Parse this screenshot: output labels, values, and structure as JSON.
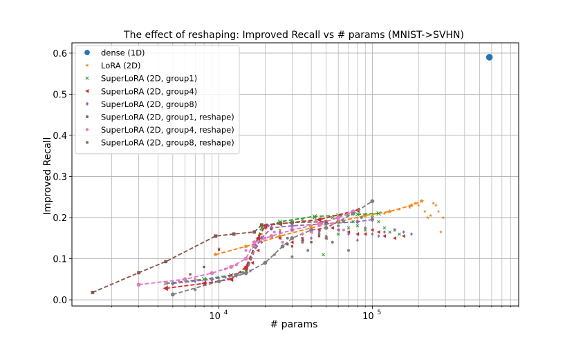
{
  "chart_data": {
    "type": "scatter",
    "title": "The effect of reshaping: Improved Recall vs # params (MNIST->SVHN)",
    "xlabel": "# params",
    "ylabel": "Improved Recall",
    "xscale": "log",
    "xlim": [
      1100,
      900000
    ],
    "ylim": [
      -0.015,
      0.625
    ],
    "x_major_ticks": [
      {
        "value": 10000,
        "base": "10",
        "exp": "4"
      },
      {
        "value": 100000,
        "base": "10",
        "exp": "5"
      }
    ],
    "y_ticks": [
      0.0,
      0.1,
      0.2,
      0.3,
      0.4,
      0.5,
      0.6
    ],
    "y_tick_labels": [
      "0.0",
      "0.1",
      "0.2",
      "0.3",
      "0.4",
      "0.5",
      "0.6"
    ],
    "grid": true,
    "legend_position": "top-left",
    "series": [
      {
        "name": "dense (1D)",
        "color": "#1f77b4",
        "marker": "o",
        "x": [
          580000
        ],
        "y": [
          0.59
        ],
        "front_x": [],
        "front_y": []
      },
      {
        "name": "LoRA (2D)",
        "color": "#ff7f0e",
        "marker": "star",
        "x": [
          9500,
          10000,
          19000,
          25000,
          40000,
          60000,
          80000,
          100000,
          120000,
          150000,
          175000,
          190000,
          200000,
          210000,
          220000,
          230000,
          240000,
          250000,
          260000,
          270000,
          280000,
          290000
        ],
        "y": [
          0.11,
          0.125,
          0.16,
          0.17,
          0.18,
          0.19,
          0.2,
          0.205,
          0.21,
          0.22,
          0.225,
          0.235,
          0.23,
          0.24,
          0.215,
          0.2,
          0.205,
          0.235,
          0.23,
          0.215,
          0.165,
          0.2
        ],
        "front_x": [
          9500,
          15000,
          25000,
          40000,
          60000,
          90000,
          130000,
          180000,
          210000
        ],
        "front_y": [
          0.11,
          0.13,
          0.155,
          0.175,
          0.19,
          0.205,
          0.215,
          0.23,
          0.24
        ]
      },
      {
        "name": "SuperLoRA (2D, group1)",
        "color": "#2ca02c",
        "marker": "x",
        "x": [
          4500,
          15000,
          17000,
          19000,
          25000,
          30000,
          35000,
          42000,
          48000,
          55000,
          60000,
          65000,
          70000,
          75000,
          80000,
          90000,
          100000,
          110000,
          120000,
          130000,
          140000,
          150000
        ],
        "y": [
          0.04,
          0.07,
          0.13,
          0.175,
          0.185,
          0.19,
          0.195,
          0.2,
          0.11,
          0.2,
          0.16,
          0.19,
          0.175,
          0.19,
          0.18,
          0.17,
          0.2,
          0.19,
          0.175,
          0.165,
          0.17,
          0.16
        ],
        "front_x": [
          4500,
          8000,
          12000,
          15000,
          17000,
          19000,
          25000,
          42000,
          60000,
          80000,
          110000
        ],
        "front_y": [
          0.04,
          0.05,
          0.06,
          0.07,
          0.13,
          0.175,
          0.19,
          0.203,
          0.205,
          0.208,
          0.21
        ]
      },
      {
        "name": "SuperLoRA (2D, group4)",
        "color": "#d62728",
        "marker": "tri-left",
        "x": [
          4500,
          8000,
          12000,
          15000,
          16500,
          18000,
          20000,
          25000,
          30000,
          35000,
          40000,
          45000,
          50000,
          55000,
          60000,
          70000,
          80000,
          90000,
          100000,
          110000,
          120000,
          140000,
          160000
        ],
        "y": [
          0.028,
          0.04,
          0.06,
          0.075,
          0.09,
          0.12,
          0.175,
          0.15,
          0.14,
          0.145,
          0.165,
          0.17,
          0.15,
          0.175,
          0.17,
          0.165,
          0.16,
          0.16,
          0.17,
          0.165,
          0.155,
          0.15,
          0.155
        ],
        "front_x": [
          4500,
          8000,
          12000,
          15000,
          18000,
          20000,
          25000,
          45000,
          80000
        ],
        "front_y": [
          0.028,
          0.04,
          0.05,
          0.08,
          0.15,
          0.18,
          0.185,
          0.195,
          0.218
        ]
      },
      {
        "name": "SuperLoRA (2D, group8)",
        "color": "#9467bd",
        "marker": "diamond",
        "x": [
          4500,
          7000,
          9000,
          11000,
          13000,
          14500,
          16000,
          17500,
          19000,
          21000,
          25000,
          30000,
          35000,
          40000,
          45000,
          50000,
          60000,
          70000,
          80000,
          90000,
          100000,
          110000,
          120000,
          140000,
          160000,
          180000
        ],
        "y": [
          0.04,
          0.045,
          0.05,
          0.055,
          0.06,
          0.065,
          0.07,
          0.13,
          0.14,
          0.18,
          0.165,
          0.17,
          0.16,
          0.15,
          0.165,
          0.155,
          0.17,
          0.16,
          0.145,
          0.175,
          0.16,
          0.155,
          0.165,
          0.17,
          0.165,
          0.16
        ],
        "front_x": [
          5000,
          9000,
          13000,
          15000,
          17500,
          19000,
          22000,
          30000,
          50000,
          80000,
          100000
        ],
        "front_y": [
          0.04,
          0.05,
          0.06,
          0.065,
          0.13,
          0.15,
          0.175,
          0.18,
          0.185,
          0.19,
          0.195
        ]
      },
      {
        "name": "SuperLoRA (2D, group1, reshape)",
        "color": "#8c564b",
        "marker": "square",
        "x": [
          1500,
          3000,
          4500,
          6500,
          8000,
          9500,
          10000,
          12500,
          17000,
          19000,
          22000,
          25000,
          28000,
          30000,
          35000,
          40000,
          45000,
          50000
        ],
        "y": [
          0.018,
          0.066,
          0.093,
          0.062,
          0.08,
          0.155,
          0.122,
          0.16,
          0.165,
          0.182,
          0.172,
          0.15,
          0.135,
          0.13,
          0.15,
          0.14,
          0.155,
          0.15
        ],
        "front_x": [
          1500,
          3000,
          4500,
          9500,
          12500,
          17000,
          19000,
          30000,
          50000
        ],
        "front_y": [
          0.018,
          0.066,
          0.093,
          0.155,
          0.16,
          0.165,
          0.182,
          0.188,
          0.19
        ]
      },
      {
        "name": "SuperLoRA (2D, group4, reshape)",
        "color": "#e377c2",
        "marker": "circle-small",
        "x": [
          3000,
          4500,
          5500,
          7000,
          9000,
          11000,
          13000,
          15000,
          17000,
          20000,
          23000,
          26000,
          30000,
          35000,
          40000,
          45000,
          50000,
          55000,
          60000,
          65000,
          70000,
          75000
        ],
        "y": [
          0.037,
          0.04,
          0.045,
          0.05,
          0.065,
          0.075,
          0.085,
          0.12,
          0.13,
          0.15,
          0.165,
          0.14,
          0.175,
          0.16,
          0.165,
          0.18,
          0.15,
          0.185,
          0.195,
          0.17,
          0.21,
          0.215
        ],
        "front_x": [
          3000,
          6000,
          9000,
          12000,
          15000,
          17000,
          22000,
          30000,
          45000,
          60000,
          75000
        ],
        "front_y": [
          0.037,
          0.05,
          0.065,
          0.08,
          0.1,
          0.14,
          0.155,
          0.17,
          0.185,
          0.2,
          0.215
        ]
      },
      {
        "name": "SuperLoRA (2D, group8, reshape)",
        "color": "#7f7f7f",
        "marker": "circle-small",
        "x": [
          5000,
          7000,
          10000,
          13000,
          15000,
          20000,
          23000,
          26000,
          28000,
          30000,
          35000,
          38000,
          40000,
          45000,
          50000,
          55000,
          60000,
          65000,
          70000,
          75000,
          85000,
          100000
        ],
        "y": [
          0.013,
          0.025,
          0.045,
          0.06,
          0.065,
          0.09,
          0.11,
          0.13,
          0.15,
          0.105,
          0.14,
          0.12,
          0.17,
          0.16,
          0.15,
          0.14,
          0.18,
          0.19,
          0.12,
          0.21,
          0.2,
          0.24
        ],
        "front_x": [
          5000,
          10000,
          15000,
          20000,
          26000,
          30000,
          40000,
          50000,
          60000,
          75000,
          100000
        ],
        "front_y": [
          0.013,
          0.045,
          0.065,
          0.09,
          0.13,
          0.15,
          0.17,
          0.175,
          0.19,
          0.21,
          0.24
        ]
      }
    ]
  }
}
